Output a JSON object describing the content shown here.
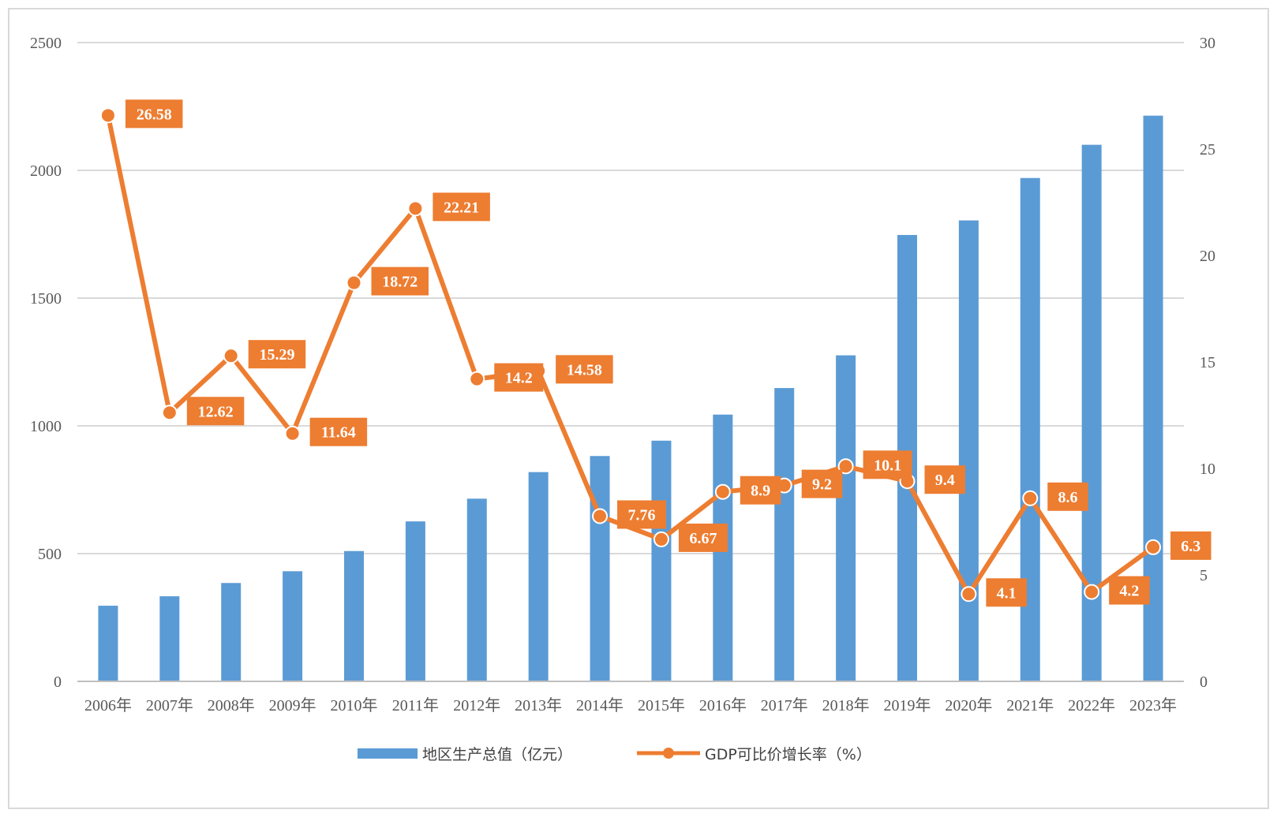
{
  "chart_data": {
    "type": "bar+line",
    "categories": [
      "2006年",
      "2007年",
      "2008年",
      "2009年",
      "2010年",
      "2011年",
      "2012年",
      "2013年",
      "2014年",
      "2015年",
      "2016年",
      "2017年",
      "2018年",
      "2019年",
      "2020年",
      "2021年",
      "2022年",
      "2023年"
    ],
    "series": [
      {
        "name": "地区生产总值（亿元）",
        "type": "bar",
        "axis": "left",
        "color": "#5b9bd5",
        "values": [
          296,
          333,
          385,
          431,
          510,
          626,
          715,
          819,
          882,
          942,
          1044,
          1148,
          1276,
          1747,
          1804,
          1970,
          2100,
          2214
        ]
      },
      {
        "name": "GDP可比价增长率（%）",
        "type": "line",
        "axis": "right",
        "color": "#ed7d31",
        "values": [
          26.58,
          12.62,
          15.29,
          11.64,
          18.72,
          22.21,
          14.2,
          14.58,
          7.76,
          6.67,
          8.9,
          9.2,
          10.1,
          9.4,
          4.1,
          8.6,
          4.2,
          6.3
        ],
        "data_labels": [
          "26.58",
          "12.62",
          "15.29",
          "11.64",
          "18.72",
          "22.21",
          "14.2",
          "14.58",
          "7.76",
          "6.67",
          "8.9",
          "9.2",
          "10.1",
          "9.4",
          "4.1",
          "8.6",
          "4.2",
          "6.3"
        ]
      }
    ],
    "y_left": {
      "min": 0,
      "max": 2500,
      "ticks": [
        "0",
        "500",
        "1000",
        "1500",
        "2000",
        "2500"
      ]
    },
    "y_right": {
      "min": 0,
      "max": 30,
      "ticks": [
        "0",
        "5",
        "10",
        "15",
        "20",
        "25",
        "30"
      ]
    },
    "grid": true,
    "legend_position": "bottom"
  }
}
